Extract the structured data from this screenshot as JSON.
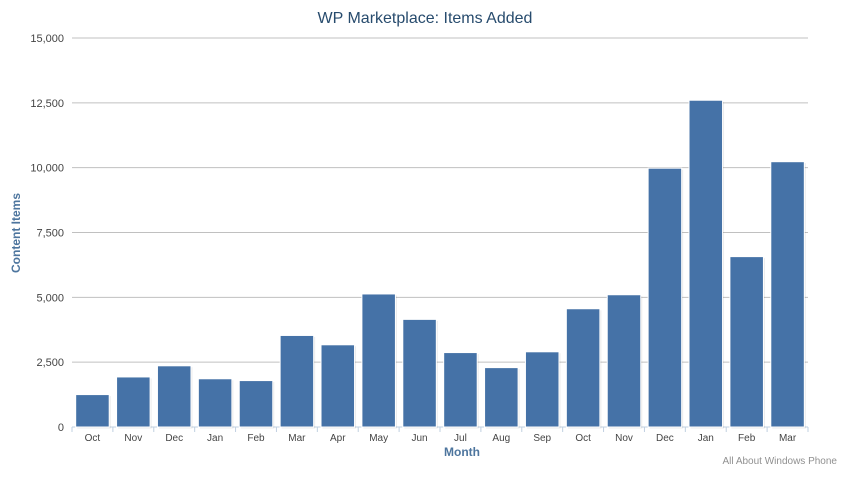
{
  "chart_data": {
    "type": "bar",
    "title": "WP Marketplace: Items Added",
    "xlabel": "Month",
    "ylabel": "Content Items",
    "credit": "All About Windows Phone",
    "categories": [
      "Oct",
      "Nov",
      "Dec",
      "Jan",
      "Feb",
      "Mar",
      "Apr",
      "May",
      "Jun",
      "Jul",
      "Aug",
      "Sep",
      "Oct",
      "Nov",
      "Dec",
      "Jan",
      "Feb",
      "Mar"
    ],
    "values": [
      1250,
      1930,
      2360,
      1860,
      1790,
      3530,
      3170,
      5130,
      4150,
      2870,
      2290,
      2900,
      4560,
      5100,
      9980,
      12600,
      6570,
      10230
    ],
    "ylim": [
      0,
      15000
    ],
    "yticks": [
      0,
      2500,
      5000,
      7500,
      10000,
      12500,
      15000
    ],
    "ytick_labels": [
      "0",
      "2,500",
      "5,000",
      "7,500",
      "10,000",
      "12,500",
      "15,000"
    ],
    "grid": true,
    "legend": "none",
    "bar_color": "#4572a7",
    "grid_color": "#c0c0c0",
    "axis_color": "#c0d0e0"
  }
}
